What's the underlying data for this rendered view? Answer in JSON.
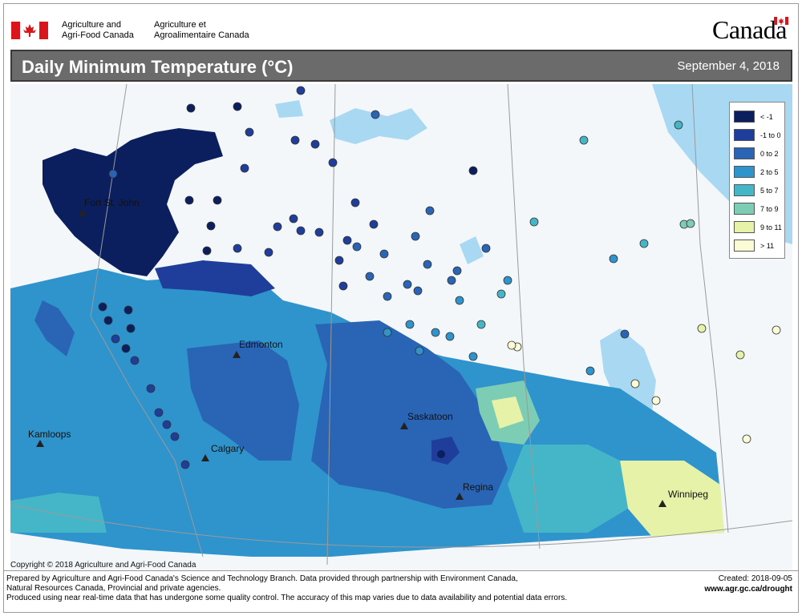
{
  "header": {
    "dept_en_line1": "Agriculture and",
    "dept_en_line2": "Agri-Food Canada",
    "dept_fr_line1": "Agriculture et",
    "dept_fr_line2": "Agroalimentaire Canada",
    "wordmark": "Canada",
    "flag_color": "#d8161c"
  },
  "title": {
    "text": "Daily Minimum Temperature (°C)",
    "date": "September 4, 2018",
    "bar_color": "#6b6b6b"
  },
  "legend": {
    "items": [
      {
        "label": "< -1",
        "color": "#0b1f5e"
      },
      {
        "label": "-1 to 0",
        "color": "#1f3d9a"
      },
      {
        "label": "0 to 2",
        "color": "#2a64b4"
      },
      {
        "label": "2 to 5",
        "color": "#2f93cc"
      },
      {
        "label": "5 to 7",
        "color": "#45b6c8"
      },
      {
        "label": "7 to 9",
        "color": "#7dcdb4"
      },
      {
        "label": "9 to 11",
        "color": "#e5f2a8"
      },
      {
        "label": "> 11",
        "color": "#fbfbd6"
      }
    ]
  },
  "cities": [
    {
      "name": "Fort St. John"
    },
    {
      "name": "Edmonton"
    },
    {
      "name": "Kamloops"
    },
    {
      "name": "Calgary"
    },
    {
      "name": "Saskatoon"
    },
    {
      "name": "Regina"
    },
    {
      "name": "Winnipeg"
    }
  ],
  "map": {
    "water_color": "#a9d8f2",
    "land_color": "#f4f7f9",
    "boundary_color": "#9a9a9a"
  },
  "copyright": "Copyright © 2018 Agriculture and Agri-Food Canada",
  "footer": {
    "line1": "Prepared by Agriculture and Agri-Food Canada's Science and Technology Branch. Data provided through partnership with Environment Canada,",
    "line2": "Natural Resources Canada, Provincial and private agencies.",
    "line3": "Produced using near real-time data that has undergone some quality control. The accuracy of this map varies due to data availability and potential data errors.",
    "created": "Created: 2018-09-05",
    "website": "www.agr.gc.ca/drought"
  }
}
